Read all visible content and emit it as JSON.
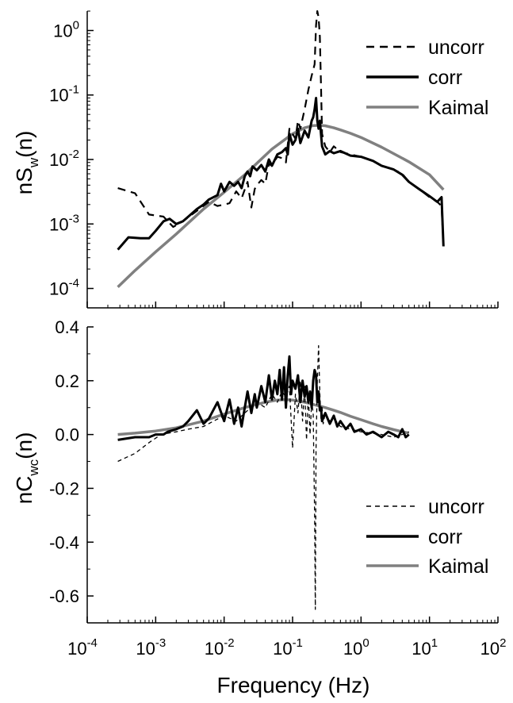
{
  "chart_data": [
    {
      "type": "line",
      "panel": "top",
      "ylabel": {
        "main": "nS",
        "sub": "w",
        "tail": "(n)"
      },
      "xscale": "log",
      "yscale": "log",
      "xlim": [
        0.0001,
        100
      ],
      "ylim": [
        5e-05,
        2
      ],
      "yticks": [
        {
          "value": 0.0001,
          "base": "10",
          "exp": "-4"
        },
        {
          "value": 0.001,
          "base": "10",
          "exp": "-3"
        },
        {
          "value": 0.01,
          "base": "10",
          "exp": "-2"
        },
        {
          "value": 0.1,
          "base": "10",
          "exp": "-1"
        },
        {
          "value": 1,
          "base": "10",
          "exp": "0"
        }
      ],
      "legend": {
        "position": "top-right"
      },
      "series": [
        {
          "name": "uncorr",
          "style": "dashed",
          "color": "#000000",
          "x": [
            0.00028,
            0.0005,
            0.0008,
            0.0013,
            0.0018,
            0.0025,
            0.004,
            0.006,
            0.008,
            0.01,
            0.012,
            0.015,
            0.018,
            0.022,
            0.025,
            0.028,
            0.03,
            0.035,
            0.04,
            0.045,
            0.05,
            0.06,
            0.07,
            0.08,
            0.09,
            0.1,
            0.11,
            0.12,
            0.13,
            0.15,
            0.17,
            0.19,
            0.21,
            0.22,
            0.23,
            0.24,
            0.25,
            0.26,
            0.27,
            0.3,
            0.35,
            0.4,
            0.5,
            0.7,
            1,
            1.5,
            2,
            3,
            4,
            5,
            7,
            10,
            13,
            15,
            16
          ],
          "y": [
            0.0036,
            0.003,
            0.0014,
            0.0013,
            0.0009,
            0.0011,
            0.0016,
            0.0022,
            0.0019,
            0.002,
            0.0021,
            0.0032,
            0.0025,
            0.0045,
            0.0018,
            0.0035,
            0.004,
            0.0048,
            0.0042,
            0.0085,
            0.008,
            0.011,
            0.0105,
            0.009,
            0.03,
            0.025,
            0.021,
            0.04,
            0.03,
            0.06,
            0.12,
            0.2,
            0.3,
            1.2,
            2.0,
            1.6,
            0.8,
            0.15,
            0.025,
            0.016,
            0.013,
            0.016,
            0.013,
            0.012,
            0.011,
            0.0095,
            0.008,
            0.007,
            0.006,
            0.0045,
            0.0035,
            0.0026,
            0.0022,
            0.0019,
            0.00045
          ]
        },
        {
          "name": "corr",
          "style": "solid",
          "color": "#000000",
          "x": [
            0.00028,
            0.0004,
            0.0006,
            0.0008,
            0.001,
            0.0013,
            0.0016,
            0.002,
            0.0025,
            0.003,
            0.004,
            0.005,
            0.006,
            0.008,
            0.009,
            0.01,
            0.012,
            0.014,
            0.016,
            0.018,
            0.02,
            0.022,
            0.024,
            0.026,
            0.03,
            0.035,
            0.04,
            0.045,
            0.05,
            0.06,
            0.07,
            0.08,
            0.085,
            0.09,
            0.1,
            0.11,
            0.12,
            0.13,
            0.15,
            0.17,
            0.19,
            0.2,
            0.21,
            0.22,
            0.23,
            0.24,
            0.25,
            0.27,
            0.3,
            0.35,
            0.4,
            0.5,
            0.7,
            1,
            1.5,
            2,
            3,
            4,
            5,
            7,
            10,
            13,
            15,
            16
          ],
          "y": [
            0.0004,
            0.00062,
            0.0006,
            0.0006,
            0.00078,
            0.0011,
            0.0012,
            0.001,
            0.0011,
            0.0013,
            0.0017,
            0.002,
            0.0024,
            0.0028,
            0.0042,
            0.0032,
            0.0045,
            0.0039,
            0.0045,
            0.0036,
            0.0055,
            0.0065,
            0.0055,
            0.0078,
            0.0068,
            0.0082,
            0.0065,
            0.01,
            0.008,
            0.012,
            0.013,
            0.015,
            0.012,
            0.025,
            0.017,
            0.02,
            0.03,
            0.018,
            0.028,
            0.022,
            0.04,
            0.045,
            0.06,
            0.09,
            0.04,
            0.03,
            0.04,
            0.016,
            0.012,
            0.0135,
            0.0125,
            0.0135,
            0.0115,
            0.011,
            0.0095,
            0.008,
            0.007,
            0.0058,
            0.0045,
            0.0035,
            0.0027,
            0.0022,
            0.0026,
            0.00045
          ]
        },
        {
          "name": "Kaimal",
          "style": "solid",
          "color": "#808080",
          "x": [
            0.00028,
            0.0005,
            0.001,
            0.002,
            0.005,
            0.01,
            0.02,
            0.05,
            0.1,
            0.15,
            0.2,
            0.25,
            0.3,
            0.4,
            0.5,
            0.7,
            1,
            2,
            5,
            10,
            16
          ],
          "y": [
            0.000105,
            0.00019,
            0.00037,
            0.0007,
            0.0017,
            0.0031,
            0.0058,
            0.0145,
            0.025,
            0.031,
            0.0335,
            0.0338,
            0.0333,
            0.031,
            0.0288,
            0.0255,
            0.022,
            0.0155,
            0.0092,
            0.0058,
            0.0034
          ]
        }
      ]
    },
    {
      "type": "line",
      "panel": "bottom",
      "ylabel": {
        "main": "nC",
        "sub": "wc",
        "tail": "(n)"
      },
      "xlabel": "Frequency (Hz)",
      "xscale": "log",
      "xlim": [
        0.0001,
        100
      ],
      "ylim": [
        -0.7,
        0.4
      ],
      "yticks": [
        {
          "value": 0.4,
          "label": "0.4"
        },
        {
          "value": 0.2,
          "label": "0.2"
        },
        {
          "value": 0.0,
          "label": "0.0"
        },
        {
          "value": -0.2,
          "label": "-0.2"
        },
        {
          "value": -0.4,
          "label": "-0.4"
        },
        {
          "value": -0.6,
          "label": "-0.6"
        }
      ],
      "xticks": [
        {
          "value": 0.0001,
          "base": "10",
          "exp": "-4"
        },
        {
          "value": 0.001,
          "base": "10",
          "exp": "-3"
        },
        {
          "value": 0.01,
          "base": "10",
          "exp": "-2"
        },
        {
          "value": 0.1,
          "base": "10",
          "exp": "-1"
        },
        {
          "value": 1,
          "base": "10",
          "exp": "0"
        },
        {
          "value": 10,
          "base": "10",
          "exp": "1"
        },
        {
          "value": 100,
          "base": "10",
          "exp": "2"
        }
      ],
      "legend": {
        "position": "bottom-right"
      },
      "series": [
        {
          "name": "uncorr",
          "style": "dashed-thin",
          "color": "#000000",
          "x": [
            0.00028,
            0.0005,
            0.0008,
            0.0012,
            0.002,
            0.003,
            0.005,
            0.007,
            0.01,
            0.015,
            0.02,
            0.03,
            0.04,
            0.05,
            0.06,
            0.07,
            0.08,
            0.09,
            0.1,
            0.11,
            0.12,
            0.13,
            0.14,
            0.15,
            0.16,
            0.17,
            0.18,
            0.19,
            0.2,
            0.21,
            0.215,
            0.22,
            0.23,
            0.24,
            0.25,
            0.26,
            0.27,
            0.28,
            0.3,
            0.35,
            0.4,
            0.5,
            0.7,
            1,
            2,
            3,
            4,
            5
          ],
          "y": [
            -0.1,
            -0.07,
            -0.03,
            0.0,
            0.01,
            0.02,
            0.03,
            0.05,
            0.07,
            0.05,
            0.08,
            0.12,
            0.1,
            0.15,
            0.12,
            0.16,
            0.14,
            0.18,
            -0.05,
            0.15,
            0.08,
            0.2,
            0.05,
            0.18,
            -0.02,
            0.15,
            0.0,
            0.12,
            0.08,
            -0.3,
            -0.65,
            -0.05,
            0.2,
            0.33,
            0.15,
            0.06,
            0.1,
            0.04,
            0.08,
            0.05,
            0.06,
            0.03,
            0.02,
            0.01,
            0.0,
            -0.01,
            0.0,
            0.01
          ]
        },
        {
          "name": "corr",
          "style": "solid",
          "color": "#000000",
          "x": [
            0.00028,
            0.0005,
            0.0008,
            0.001,
            0.0013,
            0.0015,
            0.002,
            0.0025,
            0.003,
            0.004,
            0.005,
            0.006,
            0.008,
            0.01,
            0.012,
            0.014,
            0.016,
            0.018,
            0.02,
            0.022,
            0.025,
            0.028,
            0.03,
            0.035,
            0.04,
            0.045,
            0.05,
            0.055,
            0.06,
            0.065,
            0.07,
            0.075,
            0.08,
            0.085,
            0.09,
            0.095,
            0.1,
            0.11,
            0.12,
            0.13,
            0.14,
            0.15,
            0.16,
            0.17,
            0.18,
            0.19,
            0.2,
            0.21,
            0.22,
            0.23,
            0.24,
            0.25,
            0.26,
            0.27,
            0.3,
            0.35,
            0.4,
            0.45,
            0.5,
            0.6,
            0.7,
            0.8,
            1,
            1.2,
            1.5,
            2,
            2.5,
            3,
            3.5,
            4,
            4.5,
            5
          ],
          "y": [
            -0.02,
            -0.01,
            -0.01,
            0.0,
            0.0,
            0.01,
            0.02,
            0.03,
            0.05,
            0.09,
            0.04,
            0.06,
            0.12,
            0.05,
            0.13,
            0.04,
            0.1,
            0.03,
            0.1,
            0.16,
            0.08,
            0.15,
            0.1,
            0.18,
            0.12,
            0.22,
            0.13,
            0.2,
            0.15,
            0.24,
            0.13,
            0.25,
            0.1,
            0.22,
            0.29,
            0.15,
            0.2,
            0.17,
            0.22,
            0.12,
            0.2,
            0.14,
            0.18,
            0.12,
            0.16,
            0.1,
            0.2,
            0.24,
            0.22,
            0.12,
            0.16,
            0.09,
            0.1,
            0.05,
            0.08,
            0.04,
            0.07,
            0.03,
            0.05,
            0.02,
            0.04,
            0.01,
            0.02,
            0.0,
            0.01,
            -0.01,
            0.01,
            0.0,
            -0.01,
            0.02,
            -0.01,
            0.0
          ]
        },
        {
          "name": "Kaimal",
          "style": "solid",
          "color": "#808080",
          "x": [
            0.00028,
            0.0005,
            0.001,
            0.002,
            0.005,
            0.01,
            0.02,
            0.04,
            0.06,
            0.08,
            0.1,
            0.15,
            0.2,
            0.3,
            0.4,
            0.5,
            0.7,
            1,
            1.5,
            2,
            3,
            5
          ],
          "y": [
            0.0,
            0.005,
            0.013,
            0.025,
            0.05,
            0.076,
            0.1,
            0.12,
            0.128,
            0.13,
            0.128,
            0.12,
            0.112,
            0.1,
            0.09,
            0.082,
            0.068,
            0.055,
            0.04,
            0.03,
            0.018,
            0.005
          ]
        }
      ]
    }
  ]
}
